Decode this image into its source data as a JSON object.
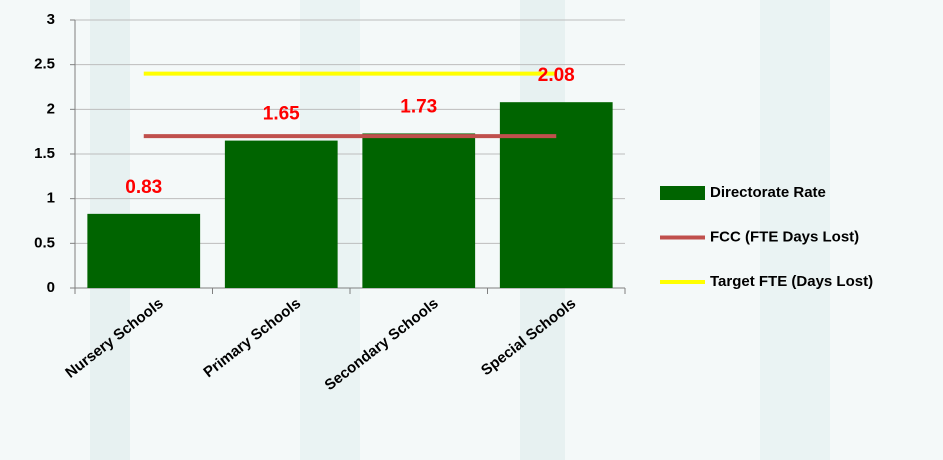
{
  "chart_data": {
    "type": "bar",
    "categories": [
      "Nursery Schools",
      "Primary Schools",
      "Secondary Schools",
      "Special Schools"
    ],
    "series": [
      {
        "name": "Directorate Rate",
        "type": "bar",
        "color": "#006400",
        "values": [
          0.83,
          1.65,
          1.73,
          2.08
        ]
      },
      {
        "name": "FCC (FTE Days Lost)",
        "type": "line",
        "color": "#c0504d",
        "values": [
          1.7,
          1.7,
          1.7,
          1.7
        ]
      },
      {
        "name": "Target FTE (Days Lost)",
        "type": "line",
        "color": "#ffff00",
        "values": [
          2.4,
          2.4,
          2.4,
          2.4
        ]
      }
    ],
    "ylim": [
      0,
      3
    ],
    "yticks": [
      0,
      0.5,
      1,
      1.5,
      2,
      2.5,
      3
    ],
    "grid": true,
    "legend": "right"
  }
}
